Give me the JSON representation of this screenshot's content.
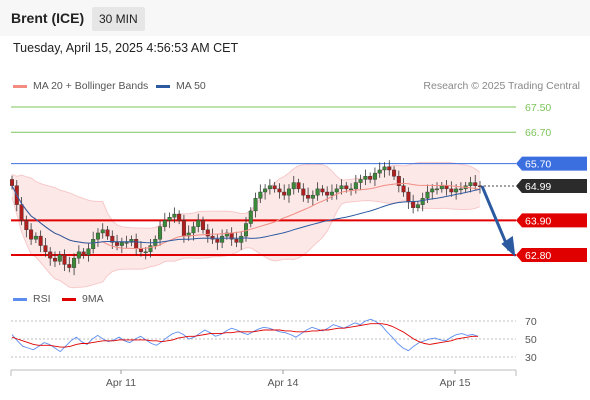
{
  "header": {
    "instrument": "Brent (ICE)",
    "interval": "30 MIN"
  },
  "datetime": "Tuesday, April 15, 2025 4:56:53 AM CET",
  "legend_main": [
    {
      "label": "MA 20 + Bollinger Bands",
      "color": "#f28b82"
    },
    {
      "label": "MA 50",
      "color": "#2c5aa0"
    }
  ],
  "copyright": "Research © 2025 Trading Central",
  "legend_rsi": [
    {
      "label": "RSI",
      "color": "#5b8def"
    },
    {
      "label": "9MA",
      "color": "#e00000"
    }
  ],
  "colors": {
    "resistance_green": "#7cc45a",
    "pivot_blue": "#3b6fe0",
    "support_red": "#e00000",
    "price_dark": "#2b2b2b",
    "band_fill": "#fde6e6"
  },
  "chart_data": [
    {
      "type": "line",
      "subtype": "candlestick",
      "title": "Brent (ICE)",
      "levels": [
        {
          "value": 67.5,
          "label": "67.50",
          "kind": "resistance"
        },
        {
          "value": 66.7,
          "label": "66.70",
          "kind": "resistance"
        },
        {
          "value": 65.7,
          "label": "65.70",
          "kind": "pivot"
        },
        {
          "value": 64.99,
          "label": "64.99",
          "kind": "last_price"
        },
        {
          "value": 63.9,
          "label": "63.90",
          "kind": "support"
        },
        {
          "value": 62.8,
          "label": "62.80",
          "kind": "support"
        }
      ],
      "ylim": [
        62.0,
        68.0
      ],
      "x_ticks": [
        "Apr 11",
        "Apr 14",
        "Apr 15"
      ],
      "close": [
        65.0,
        64.4,
        63.9,
        63.6,
        63.3,
        63.4,
        63.1,
        62.9,
        62.7,
        62.6,
        62.8,
        62.5,
        62.4,
        62.7,
        62.9,
        62.8,
        63.0,
        63.3,
        63.5,
        63.6,
        63.4,
        63.2,
        63.1,
        63.2,
        63.2,
        63.3,
        63.0,
        62.9,
        62.9,
        63.1,
        63.3,
        63.7,
        63.9,
        64.0,
        64.1,
        63.9,
        63.4,
        63.5,
        63.7,
        63.9,
        63.6,
        63.4,
        63.3,
        63.2,
        63.4,
        63.5,
        63.3,
        63.2,
        63.4,
        63.8,
        64.2,
        64.6,
        64.8,
        64.9,
        65.0,
        64.9,
        64.8,
        64.7,
        64.9,
        65.1,
        64.9,
        64.7,
        64.6,
        64.7,
        64.9,
        64.8,
        64.7,
        64.8,
        64.9,
        65.0,
        64.9,
        64.9,
        65.1,
        65.2,
        65.3,
        65.2,
        65.4,
        65.5,
        65.6,
        65.5,
        65.3,
        65.0,
        64.8,
        64.5,
        64.3,
        64.4,
        64.6,
        64.8,
        64.9,
        64.9,
        65.0,
        64.9,
        64.8,
        64.9,
        64.9,
        65.0,
        65.1,
        65.0,
        64.99
      ],
      "series": [
        {
          "name": "MA 20 + Bollinger Bands"
        },
        {
          "name": "MA 50"
        }
      ]
    },
    {
      "type": "line",
      "title": "RSI",
      "ylim": [
        20,
        80
      ],
      "y_ticks": [
        70,
        50,
        30
      ],
      "x_ticks": [
        "Apr 11",
        "Apr 14",
        "Apr 15"
      ],
      "series": [
        {
          "name": "RSI",
          "values": [
            55,
            48,
            42,
            40,
            38,
            42,
            46,
            44,
            40,
            36,
            42,
            48,
            52,
            47,
            44,
            50,
            54,
            50,
            47,
            49,
            52,
            48,
            46,
            50,
            53,
            49,
            45,
            43,
            47,
            52,
            56,
            58,
            55,
            50,
            52,
            56,
            60,
            57,
            53,
            55,
            59,
            62,
            60,
            57,
            55,
            58,
            61,
            63,
            62,
            60,
            58,
            57,
            55,
            52,
            56,
            60,
            63,
            61,
            59,
            62,
            66,
            64,
            62,
            65,
            68,
            66,
            70,
            72,
            69,
            65,
            58,
            52,
            45,
            40,
            37,
            42,
            46,
            48,
            50,
            51,
            49,
            48,
            52,
            55,
            56,
            54,
            55,
            53
          ]
        },
        {
          "name": "9MA",
          "values": [
            52,
            50,
            48,
            46,
            44,
            43,
            43,
            43,
            42,
            41,
            41,
            42,
            44,
            45,
            45,
            46,
            47,
            48,
            48,
            48,
            49,
            49,
            49,
            49,
            49,
            49,
            48,
            48,
            47,
            48,
            49,
            51,
            52,
            53,
            53,
            54,
            55,
            56,
            56,
            56,
            57,
            57,
            58,
            58,
            58,
            58,
            59,
            60,
            60,
            60,
            60,
            59,
            59,
            58,
            58,
            58,
            59,
            59,
            60,
            60,
            61,
            62,
            62,
            63,
            64,
            65,
            66,
            67,
            67,
            67,
            66,
            64,
            61,
            58,
            54,
            50,
            47,
            45,
            44,
            45,
            46,
            47,
            48,
            50,
            51,
            52,
            53,
            53
          ]
        }
      ]
    }
  ]
}
